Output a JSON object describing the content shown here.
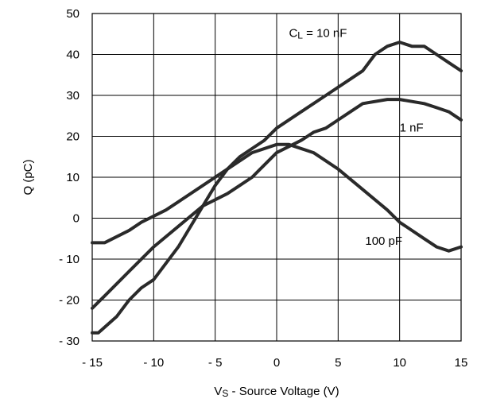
{
  "chart_data": {
    "type": "line",
    "title": "",
    "xlabel": {
      "main": "V",
      "sub": "S",
      "rest": " - Source Voltage (V)"
    },
    "ylabel": "Q (pC)",
    "xlim": [
      -15,
      15
    ],
    "ylim": [
      -30,
      50
    ],
    "x_ticks": [
      -15,
      -10,
      -5,
      0,
      5,
      10,
      15
    ],
    "y_ticks": [
      -30,
      -20,
      -10,
      0,
      10,
      20,
      30,
      40,
      50
    ],
    "x_tick_labels": [
      "- 15",
      "- 10",
      "- 5",
      "0",
      "5",
      "10",
      "15"
    ],
    "y_tick_labels": [
      "- 30",
      "- 20",
      "- 10",
      "0",
      "10",
      "20",
      "30",
      "40",
      "50"
    ],
    "grid": true,
    "line_color": "#2a2a2a",
    "series": [
      {
        "label_parts": {
          "main": "C",
          "sub": "L",
          "rest": " = 10 nF"
        },
        "points": [
          [
            -15,
            -28
          ],
          [
            -14.5,
            -28
          ],
          [
            -13,
            -24
          ],
          [
            -12,
            -20
          ],
          [
            -11,
            -17
          ],
          [
            -10,
            -15
          ],
          [
            -8,
            -7
          ],
          [
            -6,
            3
          ],
          [
            -5,
            8
          ],
          [
            -4,
            12
          ],
          [
            -3,
            15
          ],
          [
            -2,
            17
          ],
          [
            -1,
            19
          ],
          [
            0,
            22
          ],
          [
            2,
            26
          ],
          [
            4,
            30
          ],
          [
            6,
            34
          ],
          [
            7,
            36
          ],
          [
            8,
            40
          ],
          [
            9,
            42
          ],
          [
            10,
            43
          ],
          [
            11,
            42
          ],
          [
            12,
            42
          ],
          [
            13,
            40
          ],
          [
            14,
            38
          ],
          [
            15,
            36
          ]
        ]
      },
      {
        "label_parts": {
          "main": "1 nF",
          "sub": "",
          "rest": ""
        },
        "points": [
          [
            -15,
            -22
          ],
          [
            -14,
            -19
          ],
          [
            -12,
            -13
          ],
          [
            -10,
            -7
          ],
          [
            -8,
            -2
          ],
          [
            -6,
            3
          ],
          [
            -4,
            6
          ],
          [
            -3,
            8
          ],
          [
            -2,
            10
          ],
          [
            -1,
            13
          ],
          [
            0,
            16
          ],
          [
            2,
            19
          ],
          [
            3,
            21
          ],
          [
            4,
            22
          ],
          [
            5,
            24
          ],
          [
            6,
            26
          ],
          [
            7,
            28
          ],
          [
            9,
            29
          ],
          [
            10,
            29
          ],
          [
            12,
            28
          ],
          [
            13,
            27
          ],
          [
            14,
            26
          ],
          [
            15,
            24
          ]
        ]
      },
      {
        "label_parts": {
          "main": "100 pF",
          "sub": "",
          "rest": ""
        },
        "points": [
          [
            -15,
            -6
          ],
          [
            -14,
            -6
          ],
          [
            -12,
            -3
          ],
          [
            -11,
            -1
          ],
          [
            -10,
            0.5
          ],
          [
            -9,
            2
          ],
          [
            -8,
            4
          ],
          [
            -6,
            8
          ],
          [
            -4,
            12
          ],
          [
            -2,
            16
          ],
          [
            0,
            18
          ],
          [
            1,
            18
          ],
          [
            3,
            16
          ],
          [
            5,
            12
          ],
          [
            7,
            7
          ],
          [
            9,
            2
          ],
          [
            10,
            -1
          ],
          [
            11,
            -3
          ],
          [
            12,
            -5
          ],
          [
            13,
            -7
          ],
          [
            14,
            -8
          ],
          [
            15,
            -7
          ]
        ]
      }
    ]
  }
}
